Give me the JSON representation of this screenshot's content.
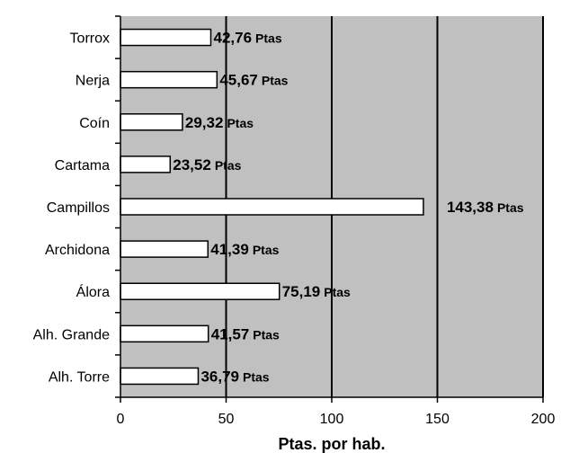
{
  "chart_data": {
    "type": "bar",
    "orientation": "horizontal",
    "categories": [
      "Torrox",
      "Nerja",
      "Coín",
      "Cartama",
      "Campillos",
      "Archidona",
      "Álora",
      "Alh. Grande",
      "Alh. Torre"
    ],
    "values": [
      42.76,
      45.67,
      29.32,
      23.52,
      143.38,
      41.39,
      75.19,
      41.57,
      36.79
    ],
    "value_labels": [
      "42,76",
      "45,67",
      "29,32",
      "23,52",
      "143,38",
      "41,39",
      "75,19",
      "41,57",
      "36,79"
    ],
    "value_unit": "Ptas",
    "xlabel": "Ptas. por hab.",
    "ylabel": "",
    "title": "",
    "xlim": [
      0,
      200
    ],
    "xticks": [
      0,
      50,
      100,
      150,
      200
    ],
    "grid": "vertical",
    "legend": "none",
    "colors": {
      "plot_background": "#c0c0c0",
      "bar_fill": "#ffffff",
      "bar_stroke": "#000000",
      "gridline": "#000000"
    }
  }
}
